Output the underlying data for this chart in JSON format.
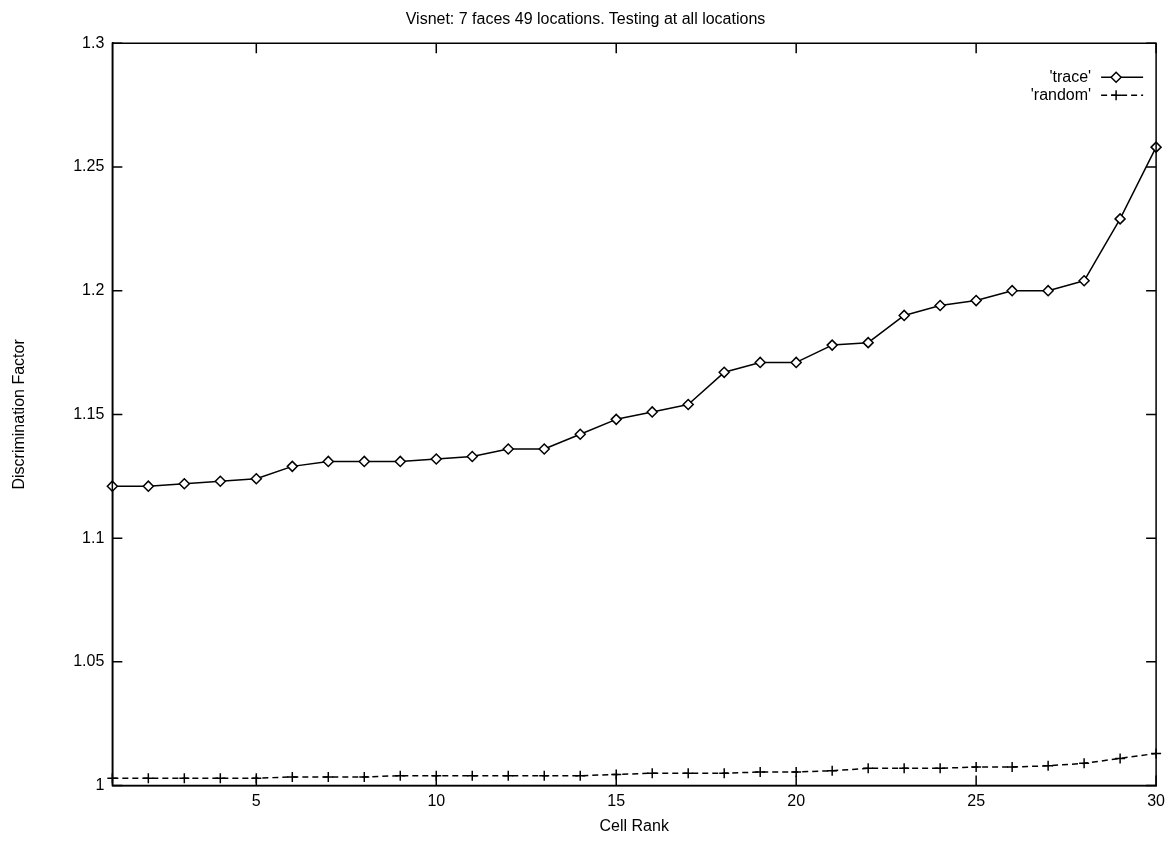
{
  "chart_data": {
    "type": "line",
    "title": "Visnet: 7 faces 49 locations. Testing at all locations",
    "xlabel": "Cell Rank",
    "ylabel": "Discrimination Factor",
    "x": [
      1,
      2,
      3,
      4,
      5,
      6,
      7,
      8,
      9,
      10,
      11,
      12,
      13,
      14,
      15,
      16,
      17,
      18,
      19,
      20,
      21,
      22,
      23,
      24,
      25,
      26,
      27,
      28,
      29,
      30
    ],
    "series": [
      {
        "name": "'trace'",
        "color": "#000000",
        "marker": "diamond",
        "line_style": "solid",
        "values": [
          1.121,
          1.121,
          1.122,
          1.123,
          1.124,
          1.129,
          1.131,
          1.131,
          1.131,
          1.132,
          1.133,
          1.136,
          1.136,
          1.142,
          1.148,
          1.151,
          1.154,
          1.167,
          1.171,
          1.171,
          1.178,
          1.179,
          1.19,
          1.194,
          1.196,
          1.2,
          1.2,
          1.204,
          1.229,
          1.258
        ]
      },
      {
        "name": "'random'",
        "color": "#000000",
        "marker": "cross",
        "line_style": "dashed",
        "values": [
          1.003,
          1.003,
          1.003,
          1.003,
          1.003,
          1.0035,
          1.0035,
          1.0035,
          1.004,
          1.004,
          1.004,
          1.004,
          1.004,
          1.004,
          1.0045,
          1.005,
          1.005,
          1.005,
          1.0055,
          1.0055,
          1.006,
          1.007,
          1.007,
          1.007,
          1.0075,
          1.0075,
          1.008,
          1.009,
          1.011,
          1.013
        ]
      }
    ],
    "xlim": [
      1,
      30
    ],
    "xticks": [
      5,
      10,
      15,
      20,
      25,
      30
    ],
    "ylim": [
      1,
      1.3
    ],
    "yticks": [
      1,
      1.05,
      1.1,
      1.15,
      1.2,
      1.25,
      1.3
    ],
    "grid": false,
    "legend": "top right"
  }
}
